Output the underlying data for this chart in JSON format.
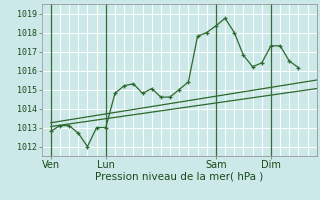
{
  "bg_color": "#cce8e8",
  "grid_color": "#ffffff",
  "line_color": "#2d6a2d",
  "xlabel": "Pression niveau de la mer( hPa )",
  "ylim": [
    1011.5,
    1019.5
  ],
  "yticks": [
    1012,
    1013,
    1014,
    1015,
    1016,
    1017,
    1018,
    1019
  ],
  "xtick_labels": [
    "Ven",
    "Lun",
    "Sam",
    "Dim"
  ],
  "xtick_positions": [
    0,
    3,
    9,
    12
  ],
  "xlim": [
    -0.5,
    14.5
  ],
  "series1_x": [
    0,
    0.5,
    1.0,
    1.5,
    2.0,
    2.5,
    3.0,
    3.5,
    4.0,
    4.5,
    5.0,
    5.5,
    6.0,
    6.5,
    7.0,
    7.5,
    8.0,
    8.5,
    9.0,
    9.5,
    10.0,
    10.5,
    11.0,
    11.5,
    12.0,
    12.5,
    13.0,
    13.5
  ],
  "series1_y": [
    1012.8,
    1013.1,
    1013.1,
    1012.7,
    1012.0,
    1013.0,
    1013.0,
    1014.8,
    1015.2,
    1015.3,
    1014.8,
    1015.05,
    1014.6,
    1014.6,
    1015.0,
    1015.4,
    1017.8,
    1018.0,
    1018.35,
    1018.75,
    1018.0,
    1016.8,
    1016.2,
    1016.4,
    1017.3,
    1017.3,
    1016.5,
    1016.15
  ],
  "trend1_x": [
    0,
    14.5
  ],
  "trend1_y": [
    1013.05,
    1015.05
  ],
  "trend2_x": [
    0,
    14.5
  ],
  "trend2_y": [
    1013.25,
    1015.5
  ],
  "vline_positions": [
    0,
    3,
    9,
    12
  ],
  "vline_color": "#3a6a3a"
}
